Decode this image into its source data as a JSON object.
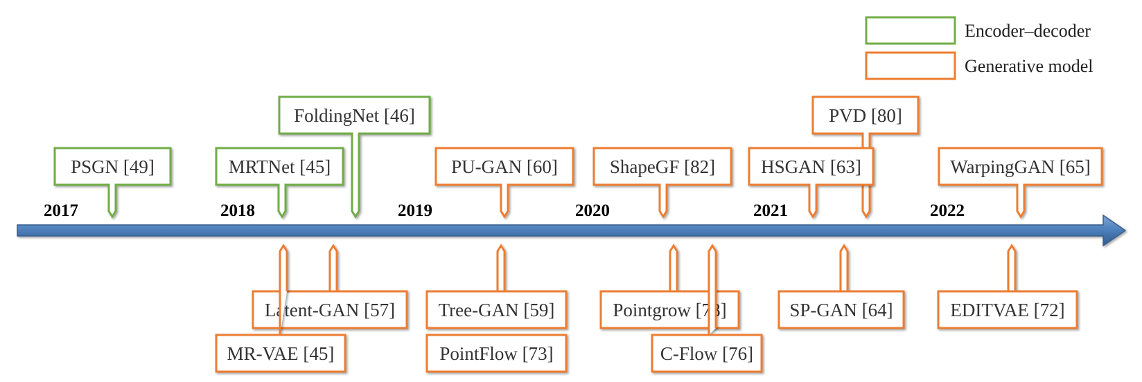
{
  "legend": {
    "items": [
      {
        "key": "encoder_decoder",
        "label": "Encoder–decoder",
        "color": "#70ad47"
      },
      {
        "key": "generative",
        "label": "Generative model",
        "color": "#ed7d31"
      }
    ]
  },
  "timeline": {
    "axis_color": "#4f81bd",
    "years": [
      "2017",
      "2018",
      "2019",
      "2020",
      "2021",
      "2022"
    ]
  },
  "methods": [
    {
      "key": "psgn",
      "label": "PSGN [49]",
      "type": "encoder_decoder"
    },
    {
      "key": "mrtnet",
      "label": "MRTNet [45]",
      "type": "encoder_decoder"
    },
    {
      "key": "foldingnet",
      "label": "FoldingNet [46]",
      "type": "encoder_decoder"
    },
    {
      "key": "pugan",
      "label": "PU-GAN [60]",
      "type": "generative"
    },
    {
      "key": "shapegf",
      "label": "ShapeGF  [82]",
      "type": "generative"
    },
    {
      "key": "hsgan",
      "label": "HSGAN [63]",
      "type": "generative"
    },
    {
      "key": "pvd",
      "label": "PVD  [80]",
      "type": "generative"
    },
    {
      "key": "warpinggan",
      "label": "WarpingGAN [65]",
      "type": "generative"
    },
    {
      "key": "latentgan",
      "label": "Latent-GAN [57]",
      "type": "generative"
    },
    {
      "key": "mrvae",
      "label": "MR-VAE [45]",
      "type": "generative"
    },
    {
      "key": "treegan",
      "label": "Tree-GAN [59]",
      "type": "generative"
    },
    {
      "key": "pointflow",
      "label": "PointFlow [73]",
      "type": "generative"
    },
    {
      "key": "pointgrow",
      "label": "Pointgrow [78]",
      "type": "generative"
    },
    {
      "key": "cflow",
      "label": "C-Flow [76]",
      "type": "generative"
    },
    {
      "key": "spgan",
      "label": "SP-GAN [64]",
      "type": "generative"
    },
    {
      "key": "editvae",
      "label": "EDITVAE [72]",
      "type": "generative"
    }
  ]
}
